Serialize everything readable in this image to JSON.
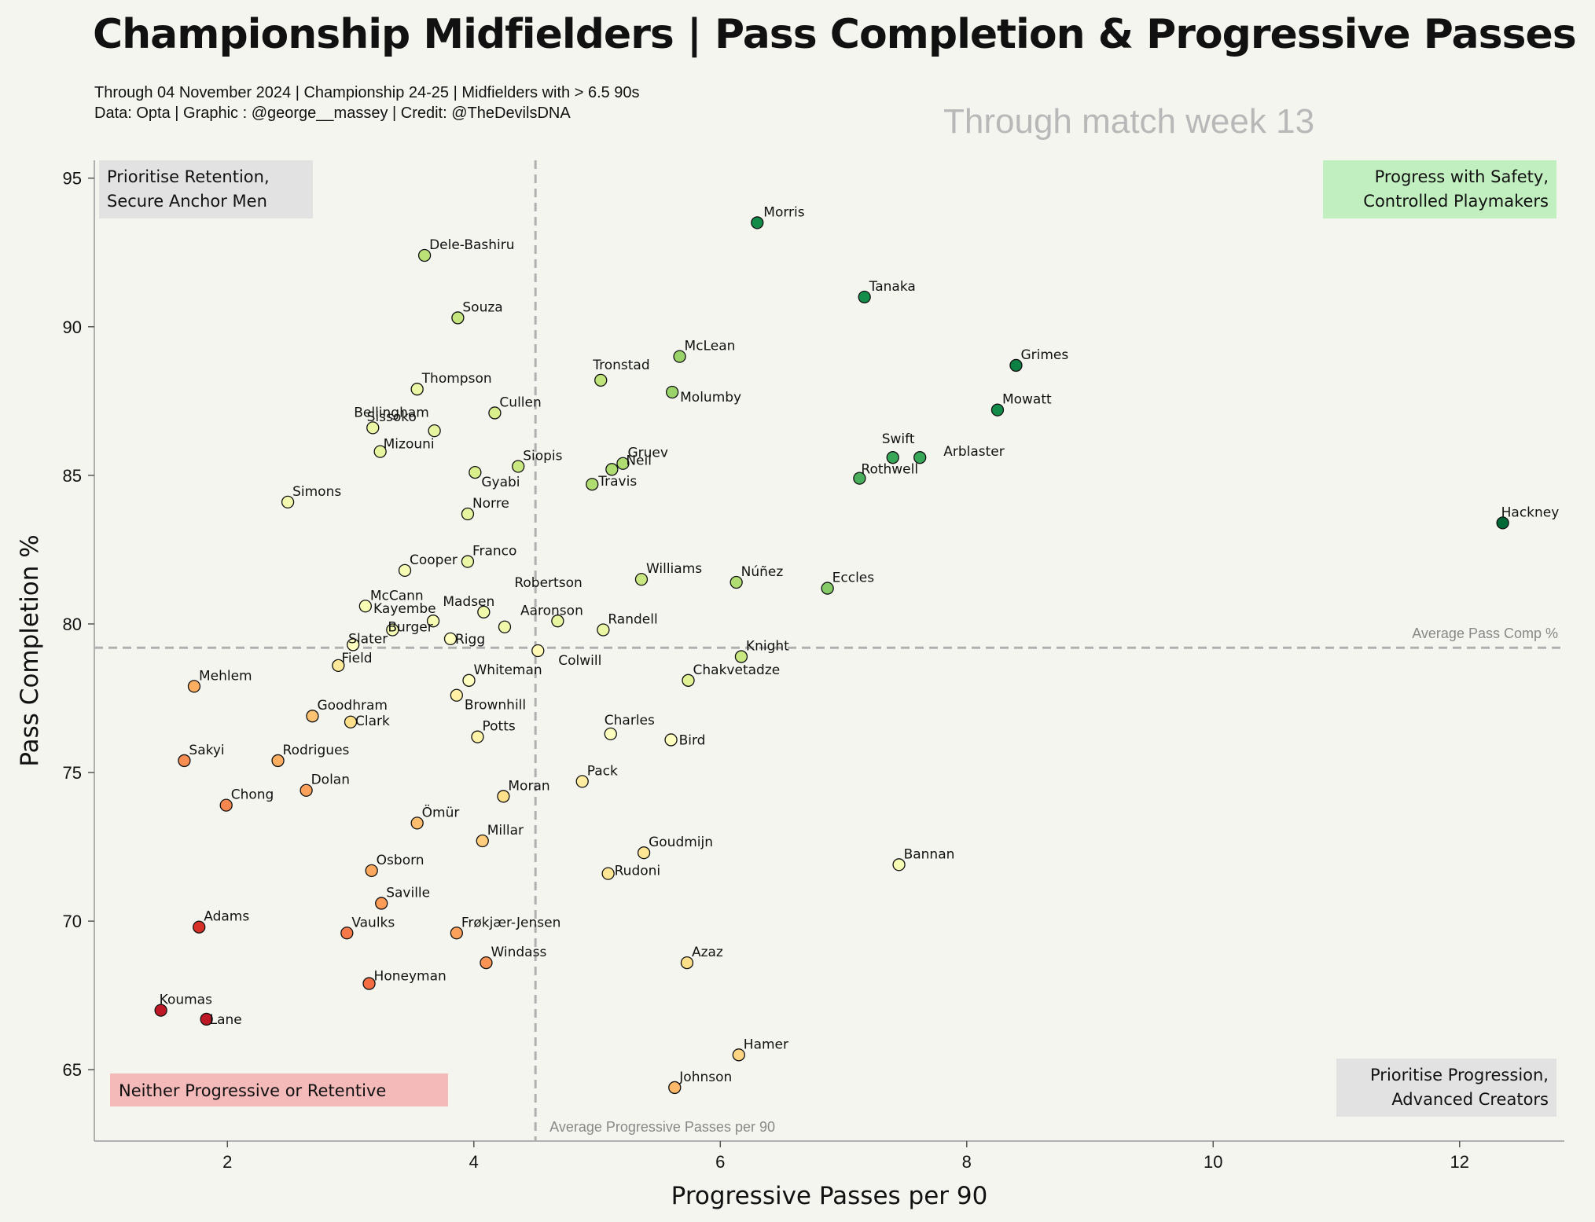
{
  "header": {
    "title": "Championship Midfielders | Pass Completion & Progressive Passes",
    "subtitle_1": "Through 04 November 2024 | Championship 24-25 | Midfielders with > 6.5 90s",
    "subtitle_2": "Data: Opta | Graphic : @george__massey | Credit: @TheDevilsDNA",
    "matchweek_note": "Through match week 13"
  },
  "quadrants": {
    "top_left": [
      "Prioritise Retention,",
      "Secure Anchor Men"
    ],
    "top_right": [
      "Progress with Safety,",
      "Controlled Playmakers"
    ],
    "bottom_left": [
      "Neither Progressive or Retentive"
    ],
    "bottom_right": [
      "Prioritise Progression,",
      "Advanced Creators"
    ]
  },
  "colors": {
    "background": "#f5f5f0",
    "top_left_box": "#e2e2e2",
    "top_right_box": "#c2efbf",
    "bottom_left_box": "#f4b9b9",
    "bottom_right_box": "#e2e2e2",
    "reference_line": "#b0b0b0",
    "colormap": "RdYlGn"
  },
  "chart_data": {
    "type": "scatter",
    "xlabel": "Progressive Passes per 90",
    "ylabel": "Pass Completion %",
    "xlim": [
      0.92,
      12.85
    ],
    "ylim": [
      62.6,
      95.6
    ],
    "xticks": [
      2,
      4,
      6,
      8,
      10,
      12
    ],
    "yticks": [
      65,
      70,
      75,
      80,
      85,
      90,
      95
    ],
    "grid": false,
    "reference_lines": {
      "avg_x": 4.5,
      "avg_x_label": "Average Progressive Passes per 90",
      "avg_y": 79.2,
      "avg_y_label": "Average Pass Comp %"
    },
    "points": [
      {
        "name": "Morris",
        "x": 6.3,
        "y": 93.5,
        "c": 0.93
      },
      {
        "name": "Dele-Bashiru",
        "x": 3.6,
        "y": 92.4,
        "c": 0.66
      },
      {
        "name": "Tanaka",
        "x": 7.17,
        "y": 91.0,
        "c": 0.92
      },
      {
        "name": "Souza",
        "x": 3.87,
        "y": 90.3,
        "c": 0.64
      },
      {
        "name": "McLean",
        "x": 5.67,
        "y": 89.0,
        "c": 0.72
      },
      {
        "name": "Grimes",
        "x": 8.4,
        "y": 88.7,
        "c": 0.95
      },
      {
        "name": "Tronstad",
        "x": 5.03,
        "y": 88.2,
        "c": 0.65
      },
      {
        "name": "Thompson",
        "x": 3.54,
        "y": 87.9,
        "c": 0.55
      },
      {
        "name": "Molumby",
        "x": 5.61,
        "y": 87.8,
        "c": 0.72
      },
      {
        "name": "Mowatt",
        "x": 8.25,
        "y": 87.2,
        "c": 0.93
      },
      {
        "name": "Cullen",
        "x": 4.17,
        "y": 87.1,
        "c": 0.6
      },
      {
        "name": "Bellingham",
        "x": 3.18,
        "y": 86.6,
        "c": 0.55
      },
      {
        "name": "Sissoko",
        "x": 3.68,
        "y": 86.5,
        "c": 0.56
      },
      {
        "name": "Mizouni",
        "x": 3.24,
        "y": 85.8,
        "c": 0.56
      },
      {
        "name": "Swift",
        "x": 7.4,
        "y": 85.6,
        "c": 0.86
      },
      {
        "name": "Arblaster",
        "x": 7.62,
        "y": 85.6,
        "c": 0.86
      },
      {
        "name": "Gruev",
        "x": 5.21,
        "y": 85.4,
        "c": 0.68
      },
      {
        "name": "Siopis",
        "x": 4.36,
        "y": 85.3,
        "c": 0.63
      },
      {
        "name": "Neil",
        "x": 5.12,
        "y": 85.2,
        "c": 0.68
      },
      {
        "name": "Gyabi",
        "x": 4.01,
        "y": 85.1,
        "c": 0.6
      },
      {
        "name": "Rothwell",
        "x": 7.13,
        "y": 84.9,
        "c": 0.84
      },
      {
        "name": "Travis",
        "x": 4.96,
        "y": 84.7,
        "c": 0.68
      },
      {
        "name": "Simons",
        "x": 2.49,
        "y": 84.1,
        "c": 0.53
      },
      {
        "name": "Norre",
        "x": 3.95,
        "y": 83.7,
        "c": 0.56
      },
      {
        "name": "Hackney",
        "x": 12.35,
        "y": 83.4,
        "c": 1.0
      },
      {
        "name": "Franco",
        "x": 3.95,
        "y": 82.1,
        "c": 0.55
      },
      {
        "name": "Cooper",
        "x": 3.44,
        "y": 81.8,
        "c": 0.52
      },
      {
        "name": "Williams",
        "x": 5.36,
        "y": 81.5,
        "c": 0.63
      },
      {
        "name": "Núñez",
        "x": 6.13,
        "y": 81.4,
        "c": 0.68
      },
      {
        "name": "Eccles",
        "x": 6.87,
        "y": 81.2,
        "c": 0.75
      },
      {
        "name": "McCann",
        "x": 3.12,
        "y": 80.6,
        "c": 0.52
      },
      {
        "name": "Madsen",
        "x": 4.08,
        "y": 80.4,
        "c": 0.54
      },
      {
        "name": "Robertson",
        "x": 4.68,
        "y": 80.1,
        "c": 0.56
      },
      {
        "name": "Kayembe",
        "x": 3.67,
        "y": 80.1,
        "c": 0.52
      },
      {
        "name": "Aaronson",
        "x": 4.25,
        "y": 79.9,
        "c": 0.54
      },
      {
        "name": "Randell",
        "x": 5.05,
        "y": 79.8,
        "c": 0.55
      },
      {
        "name": "Burger",
        "x": 3.34,
        "y": 79.8,
        "c": 0.52
      },
      {
        "name": "Rigg",
        "x": 3.81,
        "y": 79.5,
        "c": 0.5
      },
      {
        "name": "Slater",
        "x": 3.02,
        "y": 79.3,
        "c": 0.5
      },
      {
        "name": "Colwill",
        "x": 4.52,
        "y": 79.1,
        "c": 0.48
      },
      {
        "name": "Knight",
        "x": 6.17,
        "y": 78.9,
        "c": 0.63
      },
      {
        "name": "Field",
        "x": 2.9,
        "y": 78.6,
        "c": 0.43
      },
      {
        "name": "Whiteman",
        "x": 3.96,
        "y": 78.1,
        "c": 0.5
      },
      {
        "name": "Chakvetadze",
        "x": 5.74,
        "y": 78.1,
        "c": 0.58
      },
      {
        "name": "Mehlem",
        "x": 1.73,
        "y": 77.9,
        "c": 0.3
      },
      {
        "name": "Brownhill",
        "x": 3.86,
        "y": 77.6,
        "c": 0.45
      },
      {
        "name": "Goodhram",
        "x": 2.69,
        "y": 76.9,
        "c": 0.34
      },
      {
        "name": "Clark",
        "x": 3.0,
        "y": 76.7,
        "c": 0.4
      },
      {
        "name": "Charles",
        "x": 5.11,
        "y": 76.3,
        "c": 0.5
      },
      {
        "name": "Potts",
        "x": 4.03,
        "y": 76.2,
        "c": 0.46
      },
      {
        "name": "Bird",
        "x": 5.6,
        "y": 76.1,
        "c": 0.5
      },
      {
        "name": "Sakyi",
        "x": 1.65,
        "y": 75.4,
        "c": 0.25
      },
      {
        "name": "Rodrigues",
        "x": 2.41,
        "y": 75.4,
        "c": 0.3
      },
      {
        "name": "Pack",
        "x": 4.88,
        "y": 74.7,
        "c": 0.44
      },
      {
        "name": "Dolan",
        "x": 2.64,
        "y": 74.4,
        "c": 0.28
      },
      {
        "name": "Moran",
        "x": 4.24,
        "y": 74.2,
        "c": 0.4
      },
      {
        "name": "Chong",
        "x": 1.99,
        "y": 73.9,
        "c": 0.24
      },
      {
        "name": "Ömür",
        "x": 3.54,
        "y": 73.3,
        "c": 0.33
      },
      {
        "name": "Millar",
        "x": 4.07,
        "y": 72.7,
        "c": 0.36
      },
      {
        "name": "Goudmijn",
        "x": 5.38,
        "y": 72.3,
        "c": 0.42
      },
      {
        "name": "Bannan",
        "x": 7.45,
        "y": 71.9,
        "c": 0.52
      },
      {
        "name": "Osborn",
        "x": 3.17,
        "y": 71.7,
        "c": 0.29
      },
      {
        "name": "Rudoni",
        "x": 5.09,
        "y": 71.6,
        "c": 0.42
      },
      {
        "name": "Saville",
        "x": 3.25,
        "y": 70.6,
        "c": 0.27
      },
      {
        "name": "Adams",
        "x": 1.77,
        "y": 69.8,
        "c": 0.1
      },
      {
        "name": "Vaulks",
        "x": 2.97,
        "y": 69.6,
        "c": 0.22
      },
      {
        "name": "Frøkjær-Jensen",
        "x": 3.86,
        "y": 69.6,
        "c": 0.28
      },
      {
        "name": "Windass",
        "x": 4.1,
        "y": 68.6,
        "c": 0.26
      },
      {
        "name": "Azaz",
        "x": 5.73,
        "y": 68.6,
        "c": 0.4
      },
      {
        "name": "Honeyman",
        "x": 3.15,
        "y": 67.9,
        "c": 0.2
      },
      {
        "name": "Koumas",
        "x": 1.46,
        "y": 67.0,
        "c": 0.05
      },
      {
        "name": "Lane",
        "x": 1.83,
        "y": 66.7,
        "c": 0.05
      },
      {
        "name": "Hamer",
        "x": 6.15,
        "y": 65.5,
        "c": 0.38
      },
      {
        "name": "Johnson",
        "x": 5.63,
        "y": 64.4,
        "c": 0.32
      }
    ]
  }
}
